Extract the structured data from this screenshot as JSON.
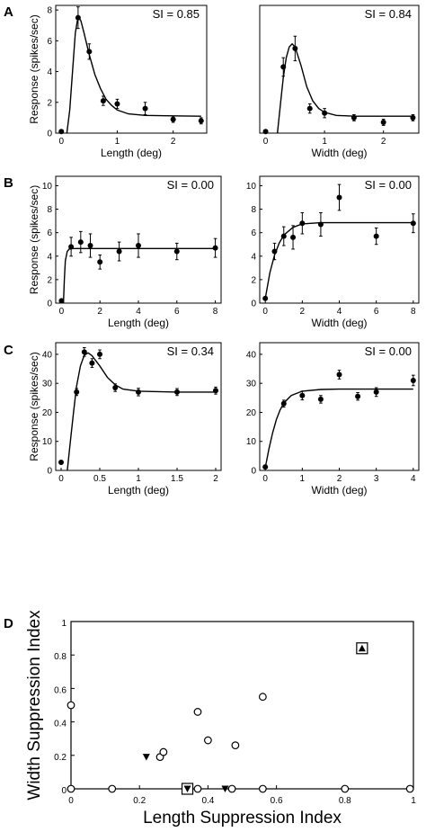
{
  "panel_labels": [
    "A",
    "B",
    "C",
    "D"
  ],
  "chart_data": [
    {
      "panel": "A",
      "type": "scatter",
      "xlabel": "Length (deg)",
      "ylabel": "Response (spikes/sec)",
      "annotation": "SI = 0.85",
      "xlim": [
        -0.1,
        2.6
      ],
      "ylim": [
        0,
        8.3
      ],
      "xticks": [
        0,
        1,
        2
      ],
      "yticks": [
        0,
        2,
        4,
        6,
        8
      ],
      "points": [
        {
          "x": 0.0,
          "y": 0.1,
          "err": 0
        },
        {
          "x": 0.3,
          "y": 7.5,
          "err": 0.7
        },
        {
          "x": 0.5,
          "y": 5.3,
          "err": 0.5
        },
        {
          "x": 0.75,
          "y": 2.1,
          "err": 0.3
        },
        {
          "x": 1.0,
          "y": 1.9,
          "err": 0.3
        },
        {
          "x": 1.5,
          "y": 1.6,
          "err": 0.4
        },
        {
          "x": 2.0,
          "y": 0.9,
          "err": 0.2
        },
        {
          "x": 2.5,
          "y": 0.8,
          "err": 0.2
        }
      ],
      "fit": [
        [
          0.1,
          0
        ],
        [
          0.15,
          1.5
        ],
        [
          0.2,
          4
        ],
        [
          0.25,
          6.5
        ],
        [
          0.3,
          7.6
        ],
        [
          0.35,
          7.3
        ],
        [
          0.4,
          6.6
        ],
        [
          0.5,
          5.1
        ],
        [
          0.6,
          3.8
        ],
        [
          0.7,
          2.9
        ],
        [
          0.8,
          2.2
        ],
        [
          0.9,
          1.8
        ],
        [
          1.0,
          1.5
        ],
        [
          1.2,
          1.25
        ],
        [
          1.5,
          1.15
        ],
        [
          2.0,
          1.12
        ],
        [
          2.5,
          1.1
        ]
      ]
    },
    {
      "panel": "A",
      "type": "scatter",
      "xlabel": "Width (deg)",
      "ylabel": "",
      "annotation": "SI = 0.84",
      "xlim": [
        -0.1,
        2.6
      ],
      "ylim": [
        0,
        8.3
      ],
      "xticks": [
        0,
        1,
        2
      ],
      "yticks": [],
      "points": [
        {
          "x": 0.0,
          "y": 0.1,
          "err": 0
        },
        {
          "x": 0.3,
          "y": 4.3,
          "err": 0.6
        },
        {
          "x": 0.5,
          "y": 5.5,
          "err": 0.8
        },
        {
          "x": 0.75,
          "y": 1.6,
          "err": 0.3
        },
        {
          "x": 1.0,
          "y": 1.3,
          "err": 0.3
        },
        {
          "x": 1.5,
          "y": 1.0,
          "err": 0.2
        },
        {
          "x": 2.0,
          "y": 0.7,
          "err": 0.2
        },
        {
          "x": 2.5,
          "y": 1.0,
          "err": 0.2
        }
      ],
      "fit": [
        [
          0.2,
          0
        ],
        [
          0.25,
          1.8
        ],
        [
          0.3,
          3.6
        ],
        [
          0.35,
          4.9
        ],
        [
          0.4,
          5.6
        ],
        [
          0.45,
          5.8
        ],
        [
          0.5,
          5.6
        ],
        [
          0.6,
          4.4
        ],
        [
          0.7,
          3.0
        ],
        [
          0.8,
          2.1
        ],
        [
          0.9,
          1.6
        ],
        [
          1.0,
          1.35
        ],
        [
          1.2,
          1.15
        ],
        [
          1.5,
          1.1
        ],
        [
          2.0,
          1.1
        ],
        [
          2.5,
          1.1
        ]
      ]
    },
    {
      "panel": "B",
      "type": "scatter",
      "xlabel": "Length (deg)",
      "ylabel": "Response (spikes/sec)",
      "annotation": "SI = 0.00",
      "xlim": [
        -0.3,
        8.3
      ],
      "ylim": [
        0,
        10.8
      ],
      "xticks": [
        0,
        2,
        4,
        6,
        8
      ],
      "yticks": [
        0,
        2,
        4,
        6,
        8,
        10
      ],
      "points": [
        {
          "x": 0.0,
          "y": 0.2,
          "err": 0
        },
        {
          "x": 0.5,
          "y": 4.8,
          "err": 0.8
        },
        {
          "x": 1.0,
          "y": 5.2,
          "err": 0.9
        },
        {
          "x": 1.5,
          "y": 4.9,
          "err": 1.0
        },
        {
          "x": 2.0,
          "y": 3.5,
          "err": 0.6
        },
        {
          "x": 3.0,
          "y": 4.4,
          "err": 0.8
        },
        {
          "x": 4.0,
          "y": 4.9,
          "err": 1.0
        },
        {
          "x": 6.0,
          "y": 4.4,
          "err": 0.7
        },
        {
          "x": 8.0,
          "y": 4.7,
          "err": 0.8
        }
      ],
      "fit": [
        [
          0.1,
          0
        ],
        [
          0.15,
          2.0
        ],
        [
          0.2,
          3.6
        ],
        [
          0.3,
          4.4
        ],
        [
          0.4,
          4.6
        ],
        [
          0.6,
          4.65
        ],
        [
          1.0,
          4.65
        ],
        [
          8.0,
          4.65
        ]
      ]
    },
    {
      "panel": "B",
      "type": "scatter",
      "xlabel": "Width (deg)",
      "ylabel": "",
      "annotation": "SI = 0.00",
      "xlim": [
        -0.3,
        8.3
      ],
      "ylim": [
        0,
        10.8
      ],
      "xticks": [
        0,
        2,
        4,
        6,
        8
      ],
      "yticks": [
        0,
        2,
        4,
        6,
        8,
        10
      ],
      "points": [
        {
          "x": 0.0,
          "y": 0.4,
          "err": 0
        },
        {
          "x": 0.5,
          "y": 4.4,
          "err": 0.7
        },
        {
          "x": 1.0,
          "y": 5.7,
          "err": 0.8
        },
        {
          "x": 1.5,
          "y": 5.6,
          "err": 1.0
        },
        {
          "x": 2.0,
          "y": 6.8,
          "err": 0.9
        },
        {
          "x": 3.0,
          "y": 6.7,
          "err": 1.0
        },
        {
          "x": 4.0,
          "y": 9.0,
          "err": 1.1
        },
        {
          "x": 6.0,
          "y": 5.7,
          "err": 0.7
        },
        {
          "x": 8.0,
          "y": 6.8,
          "err": 0.8
        }
      ],
      "fit": [
        [
          0.0,
          0.4
        ],
        [
          0.25,
          2.6
        ],
        [
          0.5,
          4.1
        ],
        [
          0.75,
          5.1
        ],
        [
          1.0,
          5.8
        ],
        [
          1.5,
          6.45
        ],
        [
          2.0,
          6.75
        ],
        [
          3.0,
          6.85
        ],
        [
          8.0,
          6.85
        ]
      ]
    },
    {
      "panel": "C",
      "type": "scatter",
      "xlabel": "Length (deg)",
      "ylabel": "Response (spikes/sec)",
      "annotation": "SI = 0.34",
      "xlim": [
        -0.07,
        2.07
      ],
      "ylim": [
        0,
        44
      ],
      "xticks": [
        0,
        0.5,
        1,
        1.5,
        2
      ],
      "yticks": [
        0,
        10,
        20,
        30,
        40
      ],
      "points": [
        {
          "x": 0.0,
          "y": 2.8,
          "err": 0
        },
        {
          "x": 0.2,
          "y": 27.0,
          "err": 1.2
        },
        {
          "x": 0.3,
          "y": 40.8,
          "err": 1.5
        },
        {
          "x": 0.4,
          "y": 37.0,
          "err": 1.5
        },
        {
          "x": 0.5,
          "y": 40.0,
          "err": 1.5
        },
        {
          "x": 0.7,
          "y": 28.5,
          "err": 1.3
        },
        {
          "x": 1.0,
          "y": 27.0,
          "err": 1.3
        },
        {
          "x": 1.5,
          "y": 27.0,
          "err": 1.2
        },
        {
          "x": 2.0,
          "y": 27.5,
          "err": 1.2
        }
      ],
      "fit": [
        [
          0.08,
          0
        ],
        [
          0.12,
          10
        ],
        [
          0.16,
          20
        ],
        [
          0.2,
          29
        ],
        [
          0.25,
          36
        ],
        [
          0.3,
          39.7
        ],
        [
          0.35,
          40.5
        ],
        [
          0.4,
          39.5
        ],
        [
          0.5,
          36.0
        ],
        [
          0.6,
          32.0
        ],
        [
          0.7,
          29.5
        ],
        [
          0.8,
          28.0
        ],
        [
          1.0,
          27.3
        ],
        [
          1.5,
          27.0
        ],
        [
          2.0,
          27.0
        ]
      ]
    },
    {
      "panel": "C",
      "type": "scatter",
      "xlabel": "Width (deg)",
      "ylabel": "",
      "annotation": "SI = 0.00",
      "xlim": [
        -0.15,
        4.15
      ],
      "ylim": [
        0,
        44
      ],
      "xticks": [
        0,
        1,
        2,
        3,
        4
      ],
      "yticks": [
        0,
        10,
        20,
        30,
        40
      ],
      "points": [
        {
          "x": 0.0,
          "y": 1.2,
          "err": 0
        },
        {
          "x": 0.5,
          "y": 23.0,
          "err": 1.2
        },
        {
          "x": 1.0,
          "y": 25.8,
          "err": 1.5
        },
        {
          "x": 1.5,
          "y": 24.5,
          "err": 1.3
        },
        {
          "x": 2.0,
          "y": 33.0,
          "err": 1.5
        },
        {
          "x": 2.5,
          "y": 25.5,
          "err": 1.3
        },
        {
          "x": 3.0,
          "y": 27.0,
          "err": 1.5
        },
        {
          "x": 4.0,
          "y": 31.0,
          "err": 1.8
        }
      ],
      "fit": [
        [
          0.0,
          1.0
        ],
        [
          0.1,
          7.5
        ],
        [
          0.2,
          13.0
        ],
        [
          0.3,
          17.5
        ],
        [
          0.4,
          20.8
        ],
        [
          0.5,
          23.2
        ],
        [
          0.7,
          25.8
        ],
        [
          1.0,
          27.3
        ],
        [
          1.5,
          27.9
        ],
        [
          2.0,
          28.0
        ],
        [
          4.0,
          28.0
        ]
      ]
    },
    {
      "panel": "D",
      "type": "scatter",
      "xlabel": "Length Suppression Index",
      "ylabel": "Width Suppression Index",
      "xlim": [
        0,
        1
      ],
      "ylim": [
        0,
        1
      ],
      "xticks": [
        0,
        0.2,
        0.4,
        0.6,
        0.8,
        1
      ],
      "yticks": [
        0,
        0.2,
        0.4,
        0.6,
        0.8,
        1
      ],
      "grid": false,
      "points": [
        {
          "x": 0.0,
          "y": 0.5,
          "marker": "circle"
        },
        {
          "x": 0.0,
          "y": 0.0,
          "marker": "circle"
        },
        {
          "x": 0.12,
          "y": 0.0,
          "marker": "circle"
        },
        {
          "x": 0.26,
          "y": 0.19,
          "marker": "circle"
        },
        {
          "x": 0.27,
          "y": 0.22,
          "marker": "circle"
        },
        {
          "x": 0.37,
          "y": 0.46,
          "marker": "circle"
        },
        {
          "x": 0.37,
          "y": 0.0,
          "marker": "circle"
        },
        {
          "x": 0.4,
          "y": 0.29,
          "marker": "circle"
        },
        {
          "x": 0.47,
          "y": 0.0,
          "marker": "circle"
        },
        {
          "x": 0.48,
          "y": 0.26,
          "marker": "circle"
        },
        {
          "x": 0.56,
          "y": 0.55,
          "marker": "circle"
        },
        {
          "x": 0.56,
          "y": 0.0,
          "marker": "circle"
        },
        {
          "x": 0.8,
          "y": 0.0,
          "marker": "circle"
        },
        {
          "x": 0.99,
          "y": 0.0,
          "marker": "circle"
        },
        {
          "x": 0.22,
          "y": 0.19,
          "marker": "triangle-down"
        },
        {
          "x": 0.34,
          "y": 0.0,
          "marker": "triangle-down-square"
        },
        {
          "x": 0.45,
          "y": 0.0,
          "marker": "triangle-down"
        },
        {
          "x": 0.85,
          "y": 0.84,
          "marker": "triangle-up-square"
        }
      ]
    }
  ]
}
